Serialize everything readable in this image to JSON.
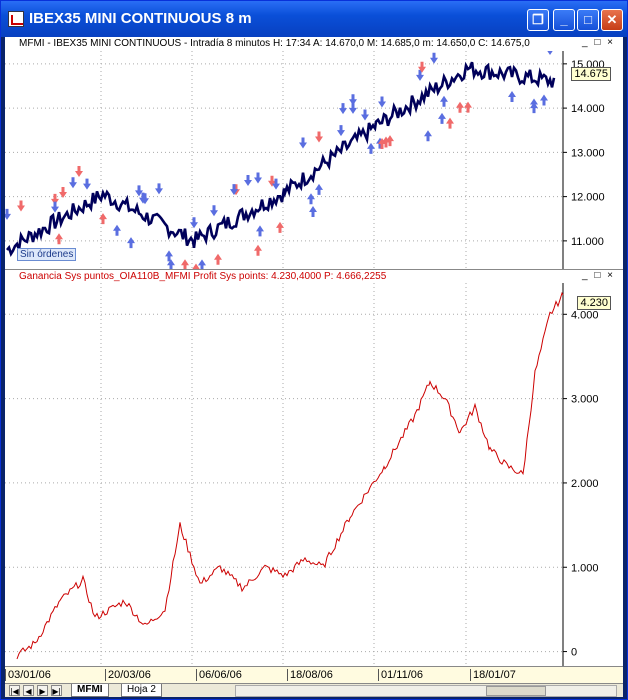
{
  "window": {
    "title": "IBEX35 MINI CONTINUOUS 8 m",
    "buttons": {
      "restore": "❐",
      "minimize": "_",
      "maximize": "□",
      "close": "✕"
    }
  },
  "price_pane": {
    "header": "MFMI - IBEX35 MINI CONTINUOUS - Intradía 8 minutos  H: 17:34  A: 14.670,0  M: 14.685,0  m: 14.650,0  C: 14.675,0",
    "controls": "_ □ ×",
    "last_price": "14.675",
    "y_labels": [
      "15.000",
      "14.000",
      "13.000",
      "12.000",
      "11.000"
    ],
    "sin_ordenes": "Sin órdenes",
    "colors": {
      "price": "#00005a",
      "buy_arrow": "#5a6ee0",
      "sell_arrow": "#f06a6a",
      "grid": "#aaaaaa"
    },
    "icons": [
      "sell-signal-arrow-icon",
      "buy-signal-arrow-icon"
    ]
  },
  "profit_pane": {
    "header": "Ganancia Sys puntos_OIA110B_MFMI  Profit Sys points: 4.230,4000   P: 4.666,2255",
    "controls": "_ □ ×",
    "last_value": "4.230",
    "y_labels": [
      "4.000",
      "3.000",
      "2.000",
      "1.000",
      "0"
    ],
    "color": "#cc0000"
  },
  "x_axis": {
    "labels": [
      "03/01/06",
      "20/03/06",
      "06/06/06",
      "18/08/06",
      "01/11/06",
      "18/01/07"
    ]
  },
  "tabs": [
    "MFMI",
    "Hoja 2"
  ],
  "nav_buttons": [
    "|◀",
    "◀",
    "▶",
    "▶|"
  ],
  "chart_data": [
    {
      "type": "line",
      "title": "MFMI - IBEX35 MINI CONTINUOUS",
      "x": [
        "03/01/06",
        "20/03/06",
        "06/06/06",
        "18/08/06",
        "01/11/06",
        "18/01/07"
      ],
      "series": [
        {
          "name": "MFMI",
          "values": [
            10800,
            12050,
            11000,
            12100,
            13600,
            14600
          ]
        }
      ],
      "ylim": [
        10500,
        15200
      ],
      "grid": true
    },
    {
      "type": "line",
      "title": "Ganancia Sys puntos_OIA110B_MFMI",
      "x": [
        "03/01/06",
        "20/03/06",
        "06/06/06",
        "18/08/06",
        "01/11/06",
        "18/01/07"
      ],
      "series": [
        {
          "name": "Profit Sys points",
          "values": [
            -50,
            500,
            750,
            1000,
            2300,
            2600
          ]
        }
      ],
      "ylim": [
        -100,
        4300
      ],
      "grid": true
    }
  ]
}
